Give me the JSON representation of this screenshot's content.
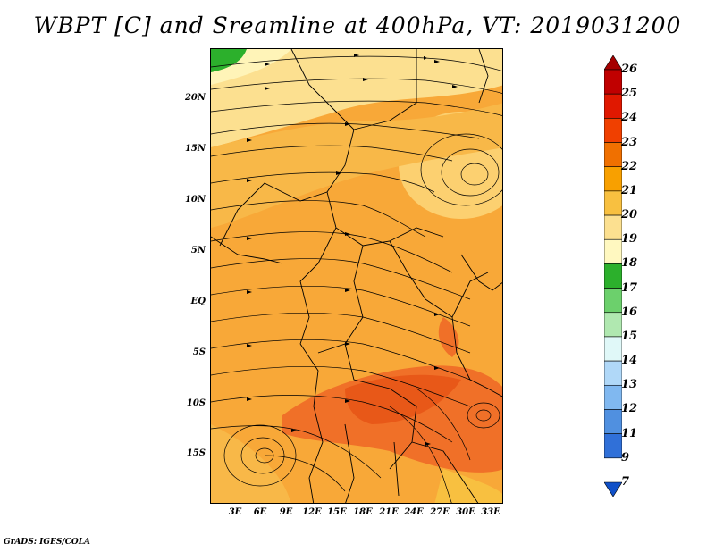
{
  "title": "WBPT [C] and Sreamline at 400hPa, VT: 2019031200",
  "footer": "GrADS: IGES/COLA",
  "lat_ticks": [
    "20N",
    "15N",
    "10N",
    "5N",
    "EQ",
    "5S",
    "10S",
    "15S"
  ],
  "lon_ticks": [
    "3E",
    "6E",
    "9E",
    "12E",
    "15E",
    "18E",
    "21E",
    "24E",
    "27E",
    "30E",
    "33E"
  ],
  "colorbar": {
    "levels": [
      "26",
      "25",
      "24",
      "23",
      "22",
      "21",
      "20",
      "19",
      "18",
      "17",
      "16",
      "15",
      "14",
      "13",
      "12",
      "11",
      "9",
      "7"
    ],
    "colors": [
      "#a50000",
      "#c00000",
      "#e01800",
      "#f04000",
      "#f07000",
      "#f8a000",
      "#f8c040",
      "#fce090",
      "#fff8c0",
      "#2cb02c",
      "#6cd06c",
      "#b0e8b0",
      "#e0f8f8",
      "#b0d8f8",
      "#80b8f0",
      "#5090e0",
      "#3070d8",
      "#1050c8"
    ]
  }
}
